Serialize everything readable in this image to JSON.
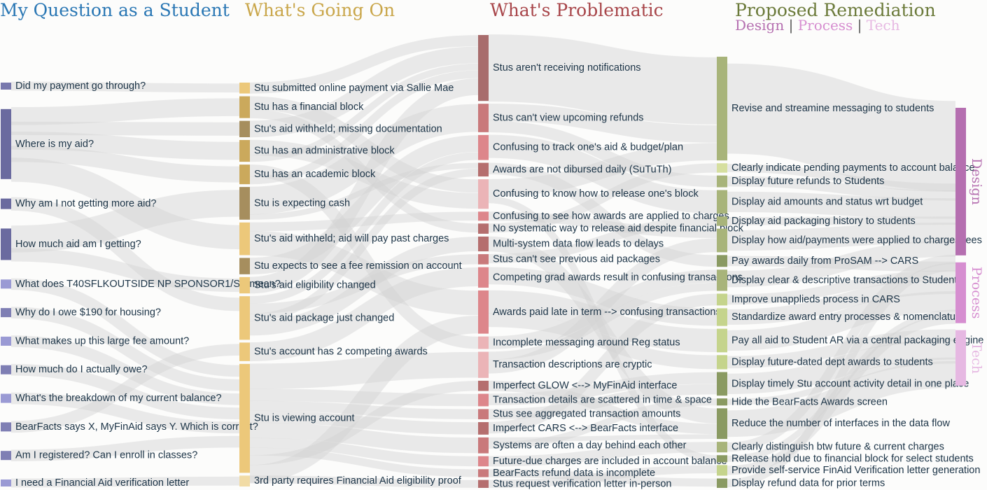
{
  "headers": {
    "questions": "My Question as a Student",
    "going_on": "What's Going On",
    "problematic": "What's Problematic",
    "remediation": "Proposed Remediation"
  },
  "legend": {
    "design": "Design",
    "process": "Process",
    "tech": "Tech",
    "separator": "|"
  },
  "colors": {
    "questions_header": "#2a77b4",
    "going_on_header": "#c9a64a",
    "problematic_header": "#a8464a",
    "remediation_header": "#6b7a3a",
    "design": "#b56fb0",
    "process": "#d68ed0",
    "tech": "#e6b8e2",
    "link": "#d2d2d2"
  },
  "columns": [
    {
      "id": "q",
      "nodes": [
        {
          "label": "Did my payment go through?",
          "color": "#7878ad",
          "weight": 1
        },
        {
          "label": "Where is my aid?",
          "color": "#6a6a9f",
          "weight": 10
        },
        {
          "label": "Why am I not getting more aid?",
          "color": "#6a6a9f",
          "weight": 1.5
        },
        {
          "label": "How much aid am I getting?",
          "color": "#6a6a9f",
          "weight": 4.5
        },
        {
          "label": "What does T40SFLKOUTSIDE NP SPONSOR1/SP mean?",
          "color": "#9a9ad4",
          "weight": 1.3
        },
        {
          "label": "Why do I owe $190 for housing?",
          "color": "#7f7fb4",
          "weight": 1.3
        },
        {
          "label": "What makes up this large fee amount?",
          "color": "#9a9ad4",
          "weight": 1.3
        },
        {
          "label": "How much do I actually owe?",
          "color": "#7f7fb4",
          "weight": 1.3
        },
        {
          "label": "What's the breakdown of my current balance?",
          "color": "#9a9ad4",
          "weight": 1.3
        },
        {
          "label": "BearFacts says X, MyFinAid says Y. Which is correct?",
          "color": "#7f7fb4",
          "weight": 1.3
        },
        {
          "label": "Am I registered? Can I enroll in classes?",
          "color": "#7f7fb4",
          "weight": 1.3
        },
        {
          "label": "I need a Financial Aid verification letter",
          "color": "#9a9ad4",
          "weight": 1
        }
      ]
    },
    {
      "id": "g",
      "nodes": [
        {
          "label": "Stu submitted online payment via Sallie Mae",
          "color": "#ecc87a",
          "weight": 1
        },
        {
          "label": "Stu has a financial block",
          "color": "#cba95c",
          "weight": 2
        },
        {
          "label": "Stu's aid withheld; missing documentation",
          "color": "#a68e5e",
          "weight": 1.5
        },
        {
          "label": "Stu has an administrative block",
          "color": "#cba95c",
          "weight": 2
        },
        {
          "label": "Stu has an academic block",
          "color": "#cba95c",
          "weight": 1.8
        },
        {
          "label": "Stu is expecting cash",
          "color": "#a68e5e",
          "weight": 3
        },
        {
          "label": "Stu's aid withheld; aid will pay past charges",
          "color": "#ecc87a",
          "weight": 3
        },
        {
          "label": "Stu expects to see a fee remission on account",
          "color": "#a68e5e",
          "weight": 1.5
        },
        {
          "label": "Stu's aid eligibility changed",
          "color": "#ecc87a",
          "weight": 1.5
        },
        {
          "label": "Stu's aid package just changed",
          "color": "#ecc87a",
          "weight": 4
        },
        {
          "label": "Stu's account has 2 competing awards",
          "color": "#ecc87a",
          "weight": 1.7
        },
        {
          "label": "Stu is viewing account",
          "color": "#ecc87a",
          "weight": 10
        },
        {
          "label": "3rd party requires Financial Aid eligibility proof",
          "color": "#f1dba5",
          "weight": 1
        }
      ]
    },
    {
      "id": "p",
      "nodes": [
        {
          "label": "Stus aren't receiving notifications",
          "color": "#a86c6c",
          "weight": 5.8
        },
        {
          "label": "Stus can't view upcoming refunds",
          "color": "#c9797b",
          "weight": 2.5
        },
        {
          "label": "Confusing to track one's aid & budget/plan",
          "color": "#dd868b",
          "weight": 2.2
        },
        {
          "label": "Awards are not dibursed daily (SuTuTh)",
          "color": "#b56e6e",
          "weight": 1.2
        },
        {
          "label": "Confusing to know how to release one's block",
          "color": "#ebb4b7",
          "weight": 2.6
        },
        {
          "label": "Confusing to see how awards are applied to charges",
          "color": "#dd868b",
          "weight": 0.8
        },
        {
          "label": "No systematic way to release aid despite financial block",
          "color": "#b56e6e",
          "weight": 0.9
        },
        {
          "label": "Multi-system data flow leads to delays",
          "color": "#b56e6e",
          "weight": 1.3
        },
        {
          "label": "Stus can't see previous aid packages",
          "color": "#c9797b",
          "weight": 0.9
        },
        {
          "label": "Competing grad awards result in confusing transactions",
          "color": "#dd868b",
          "weight": 1.8
        },
        {
          "label": "Awards paid late in term --> confusing transactions",
          "color": "#dd868b",
          "weight": 3.8
        },
        {
          "label": "Incomplete messaging around Reg status",
          "color": "#ebb4b7",
          "weight": 1.1
        },
        {
          "label": "Transaction descriptions are cryptic",
          "color": "#ebb4b7",
          "weight": 2.3
        },
        {
          "label": "Imperfect GLOW <--> MyFinAid interface",
          "color": "#b56e6e",
          "weight": 0.9
        },
        {
          "label": "Transaction details are scattered in time & space",
          "color": "#dd868b",
          "weight": 1.1
        },
        {
          "label": "Stus see aggregated transaction amounts",
          "color": "#c9797b",
          "weight": 0.9
        },
        {
          "label": "Imperfect CARS <--> BearFacts interface",
          "color": "#b56e6e",
          "weight": 1.1
        },
        {
          "label": "Systems are often a day behind each other",
          "color": "#c9797b",
          "weight": 1.4
        },
        {
          "label": "Future-due charges are included in account balance",
          "color": "#dd868b",
          "weight": 0.9
        },
        {
          "label": "BearFacts refund data is incomplete",
          "color": "#c9797b",
          "weight": 0.7
        },
        {
          "label": "Stus request verification letter in-person",
          "color": "#b56e6e",
          "weight": 0.7
        }
      ]
    },
    {
      "id": "r",
      "nodes": [
        {
          "label": "Revise and streamine messaging to students",
          "color": "#a8b47a",
          "weight": 8.8
        },
        {
          "label": "Clearly indicate pending payments to account balance",
          "color": "#d6df9f",
          "weight": 0.8
        },
        {
          "label": "Display future refunds to Students",
          "color": "#a8b47a",
          "weight": 1
        },
        {
          "label": "Display aid amounts and status wrt budget",
          "color": "#a8b47a",
          "weight": 2
        },
        {
          "label": "Display aid packaging history to students",
          "color": "#a8b47a",
          "weight": 0.8
        },
        {
          "label": "Display how aid/payments were applied to charges/fees",
          "color": "#a8b47a",
          "weight": 2
        },
        {
          "label": "Pay awards daily from ProSAM --> CARS",
          "color": "#8a9a62",
          "weight": 1
        },
        {
          "label": "Display clear & descriptive transactions to Students",
          "color": "#a8b47a",
          "weight": 1.8
        },
        {
          "label": "Improve unapplieds process in CARS",
          "color": "#c5d48c",
          "weight": 1
        },
        {
          "label": "Standardize award entry processes & nomenclature",
          "color": "#c5d48c",
          "weight": 1.5
        },
        {
          "label": "Pay all aid to Student AR via a central packaging engine",
          "color": "#c5d48c",
          "weight": 2
        },
        {
          "label": "Display future-dated dept awards to students",
          "color": "#c5d48c",
          "weight": 1.2
        },
        {
          "label": "Display timely Stu account activity detail in one place",
          "color": "#8a9a62",
          "weight": 2
        },
        {
          "label": "Hide the BearFacts Awards screen",
          "color": "#8a9a62",
          "weight": 0.6
        },
        {
          "label": "Reduce the number of interfaces in the data flow",
          "color": "#8a9a62",
          "weight": 2.6
        },
        {
          "label": "Clearly distinguish btw future & current charges",
          "color": "#a8b47a",
          "weight": 0.9
        },
        {
          "label": "Release hold due to financial block for select students",
          "color": "#8a9a62",
          "weight": 0.6
        },
        {
          "label": "Provide self-service FinAid Verification letter generation",
          "color": "#c5d48c",
          "weight": 0.9
        },
        {
          "label": "Display refund data for prior terms",
          "color": "#8a9a62",
          "weight": 0.8
        }
      ]
    },
    {
      "id": "c",
      "nodes": [
        {
          "label": "Design",
          "color": "#b56fb0",
          "weight": 17
        },
        {
          "label": "Process",
          "color": "#d68ed0",
          "weight": 7
        },
        {
          "label": "Tech",
          "color": "#e6b8e2",
          "weight": 6.4
        }
      ]
    }
  ],
  "links": [
    [
      "q",
      0,
      "g",
      0,
      1
    ],
    [
      "q",
      1,
      "g",
      1,
      2
    ],
    [
      "q",
      1,
      "g",
      2,
      1.5
    ],
    [
      "q",
      1,
      "g",
      3,
      2
    ],
    [
      "q",
      1,
      "g",
      4,
      1.8
    ],
    [
      "q",
      1,
      "g",
      6,
      2.7
    ],
    [
      "q",
      2,
      "g",
      9,
      1.5
    ],
    [
      "q",
      3,
      "g",
      5,
      3
    ],
    [
      "q",
      3,
      "g",
      8,
      1.5
    ],
    [
      "q",
      4,
      "g",
      11,
      1.3
    ],
    [
      "q",
      5,
      "g",
      11,
      1.3
    ],
    [
      "q",
      6,
      "g",
      11,
      1.3
    ],
    [
      "q",
      7,
      "g",
      11,
      1.3
    ],
    [
      "q",
      8,
      "g",
      11,
      1.3
    ],
    [
      "q",
      9,
      "g",
      10,
      1.3
    ],
    [
      "q",
      10,
      "g",
      11,
      1.3
    ],
    [
      "q",
      11,
      "g",
      12,
      1
    ],
    [
      "g",
      0,
      "p",
      0,
      1
    ],
    [
      "g",
      1,
      "p",
      4,
      1.2
    ],
    [
      "g",
      1,
      "p",
      6,
      0.8
    ],
    [
      "g",
      2,
      "p",
      0,
      1.5
    ],
    [
      "g",
      3,
      "p",
      4,
      1.4
    ],
    [
      "g",
      3,
      "p",
      0,
      0.6
    ],
    [
      "g",
      4,
      "p",
      11,
      1.1
    ],
    [
      "g",
      4,
      "p",
      0,
      0.7
    ],
    [
      "g",
      5,
      "p",
      1,
      2.5
    ],
    [
      "g",
      5,
      "p",
      3,
      0.5
    ],
    [
      "g",
      6,
      "p",
      5,
      0.8
    ],
    [
      "g",
      6,
      "p",
      10,
      2.2
    ],
    [
      "g",
      7,
      "p",
      2,
      1.5
    ],
    [
      "g",
      8,
      "p",
      0,
      1.5
    ],
    [
      "g",
      9,
      "p",
      2,
      0.7
    ],
    [
      "g",
      9,
      "p",
      8,
      0.9
    ],
    [
      "g",
      9,
      "p",
      3,
      0.7
    ],
    [
      "g",
      9,
      "p",
      7,
      1.3
    ],
    [
      "g",
      10,
      "p",
      9,
      1.7
    ],
    [
      "g",
      11,
      "p",
      12,
      2.3
    ],
    [
      "g",
      11,
      "p",
      14,
      1.1
    ],
    [
      "g",
      11,
      "p",
      15,
      0.9
    ],
    [
      "g",
      11,
      "p",
      16,
      1.1
    ],
    [
      "g",
      11,
      "p",
      17,
      1.4
    ],
    [
      "g",
      11,
      "p",
      18,
      0.9
    ],
    [
      "g",
      11,
      "p",
      19,
      0.7
    ],
    [
      "g",
      11,
      "p",
      13,
      0.9
    ],
    [
      "g",
      11,
      "p",
      10,
      1.6
    ],
    [
      "g",
      12,
      "p",
      20,
      0.7
    ],
    [
      "p",
      0,
      "r",
      0,
      5.8
    ],
    [
      "p",
      1,
      "r",
      0,
      1.5
    ],
    [
      "p",
      1,
      "r",
      2,
      1
    ],
    [
      "p",
      2,
      "r",
      3,
      2
    ],
    [
      "p",
      3,
      "r",
      6,
      1
    ],
    [
      "p",
      4,
      "r",
      0,
      1.5
    ],
    [
      "p",
      4,
      "r",
      16,
      0.6
    ],
    [
      "p",
      5,
      "r",
      5,
      0.8
    ],
    [
      "p",
      6,
      "r",
      1,
      0.8
    ],
    [
      "p",
      7,
      "r",
      14,
      1.3
    ],
    [
      "p",
      8,
      "r",
      4,
      0.8
    ],
    [
      "p",
      9,
      "r",
      9,
      1.5
    ],
    [
      "p",
      10,
      "r",
      10,
      2
    ],
    [
      "p",
      10,
      "r",
      11,
      1.2
    ],
    [
      "p",
      11,
      "r",
      7,
      1.1
    ],
    [
      "p",
      12,
      "r",
      7,
      0.7
    ],
    [
      "p",
      12,
      "r",
      5,
      1.2
    ],
    [
      "p",
      13,
      "r",
      14,
      0.9
    ],
    [
      "p",
      14,
      "r",
      12,
      1
    ],
    [
      "p",
      15,
      "r",
      12,
      0.9
    ],
    [
      "p",
      16,
      "r",
      8,
      1
    ],
    [
      "p",
      17,
      "r",
      14,
      0.4
    ],
    [
      "p",
      17,
      "r",
      13,
      0.6
    ],
    [
      "p",
      18,
      "r",
      15,
      0.9
    ],
    [
      "p",
      19,
      "r",
      18,
      0.7
    ],
    [
      "p",
      20,
      "r",
      17,
      0.7
    ],
    [
      "r",
      0,
      "c",
      0,
      8.8
    ],
    [
      "r",
      1,
      "c",
      0,
      0.8
    ],
    [
      "r",
      2,
      "c",
      0,
      1
    ],
    [
      "r",
      3,
      "c",
      0,
      2
    ],
    [
      "r",
      4,
      "c",
      0,
      0.8
    ],
    [
      "r",
      5,
      "c",
      0,
      2
    ],
    [
      "r",
      7,
      "c",
      0,
      1.6
    ],
    [
      "r",
      6,
      "c",
      1,
      1
    ],
    [
      "r",
      8,
      "c",
      1,
      1
    ],
    [
      "r",
      9,
      "c",
      1,
      1.5
    ],
    [
      "r",
      10,
      "c",
      1,
      2
    ],
    [
      "r",
      16,
      "c",
      1,
      0.6
    ],
    [
      "r",
      17,
      "c",
      1,
      0.9
    ],
    [
      "r",
      11,
      "c",
      2,
      1.2
    ],
    [
      "r",
      12,
      "c",
      2,
      2
    ],
    [
      "r",
      13,
      "c",
      2,
      0.6
    ],
    [
      "r",
      14,
      "c",
      2,
      2.6
    ],
    [
      "r",
      15,
      "c",
      0,
      0.9
    ],
    [
      "r",
      18,
      "c",
      0,
      0.8
    ]
  ]
}
